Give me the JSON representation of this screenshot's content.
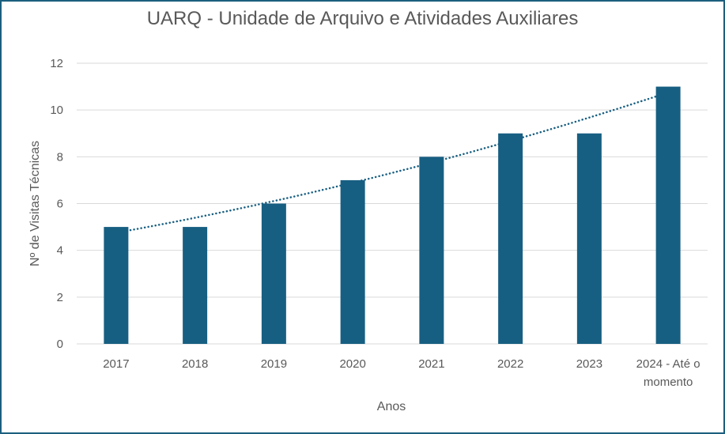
{
  "chart_data": {
    "type": "bar",
    "title": "UARQ - Unidade de Arquivo e Atividades Auxiliares",
    "xlabel": "Anos",
    "ylabel": "Nº de Visitas Técnicas",
    "categories": [
      "2017",
      "2018",
      "2019",
      "2020",
      "2021",
      "2022",
      "2023",
      "2024 - Até o momento"
    ],
    "series": [
      {
        "values": [
          5,
          5,
          6,
          7,
          8,
          9,
          9,
          11
        ],
        "color": "#175f82"
      }
    ],
    "trendline": {
      "style": "dotted",
      "kind": "polynomial",
      "color": "#175f82"
    },
    "ylim": [
      0,
      12
    ],
    "yticks": [
      0,
      2,
      4,
      6,
      8,
      10,
      12
    ],
    "grid": true,
    "legend": "none"
  }
}
